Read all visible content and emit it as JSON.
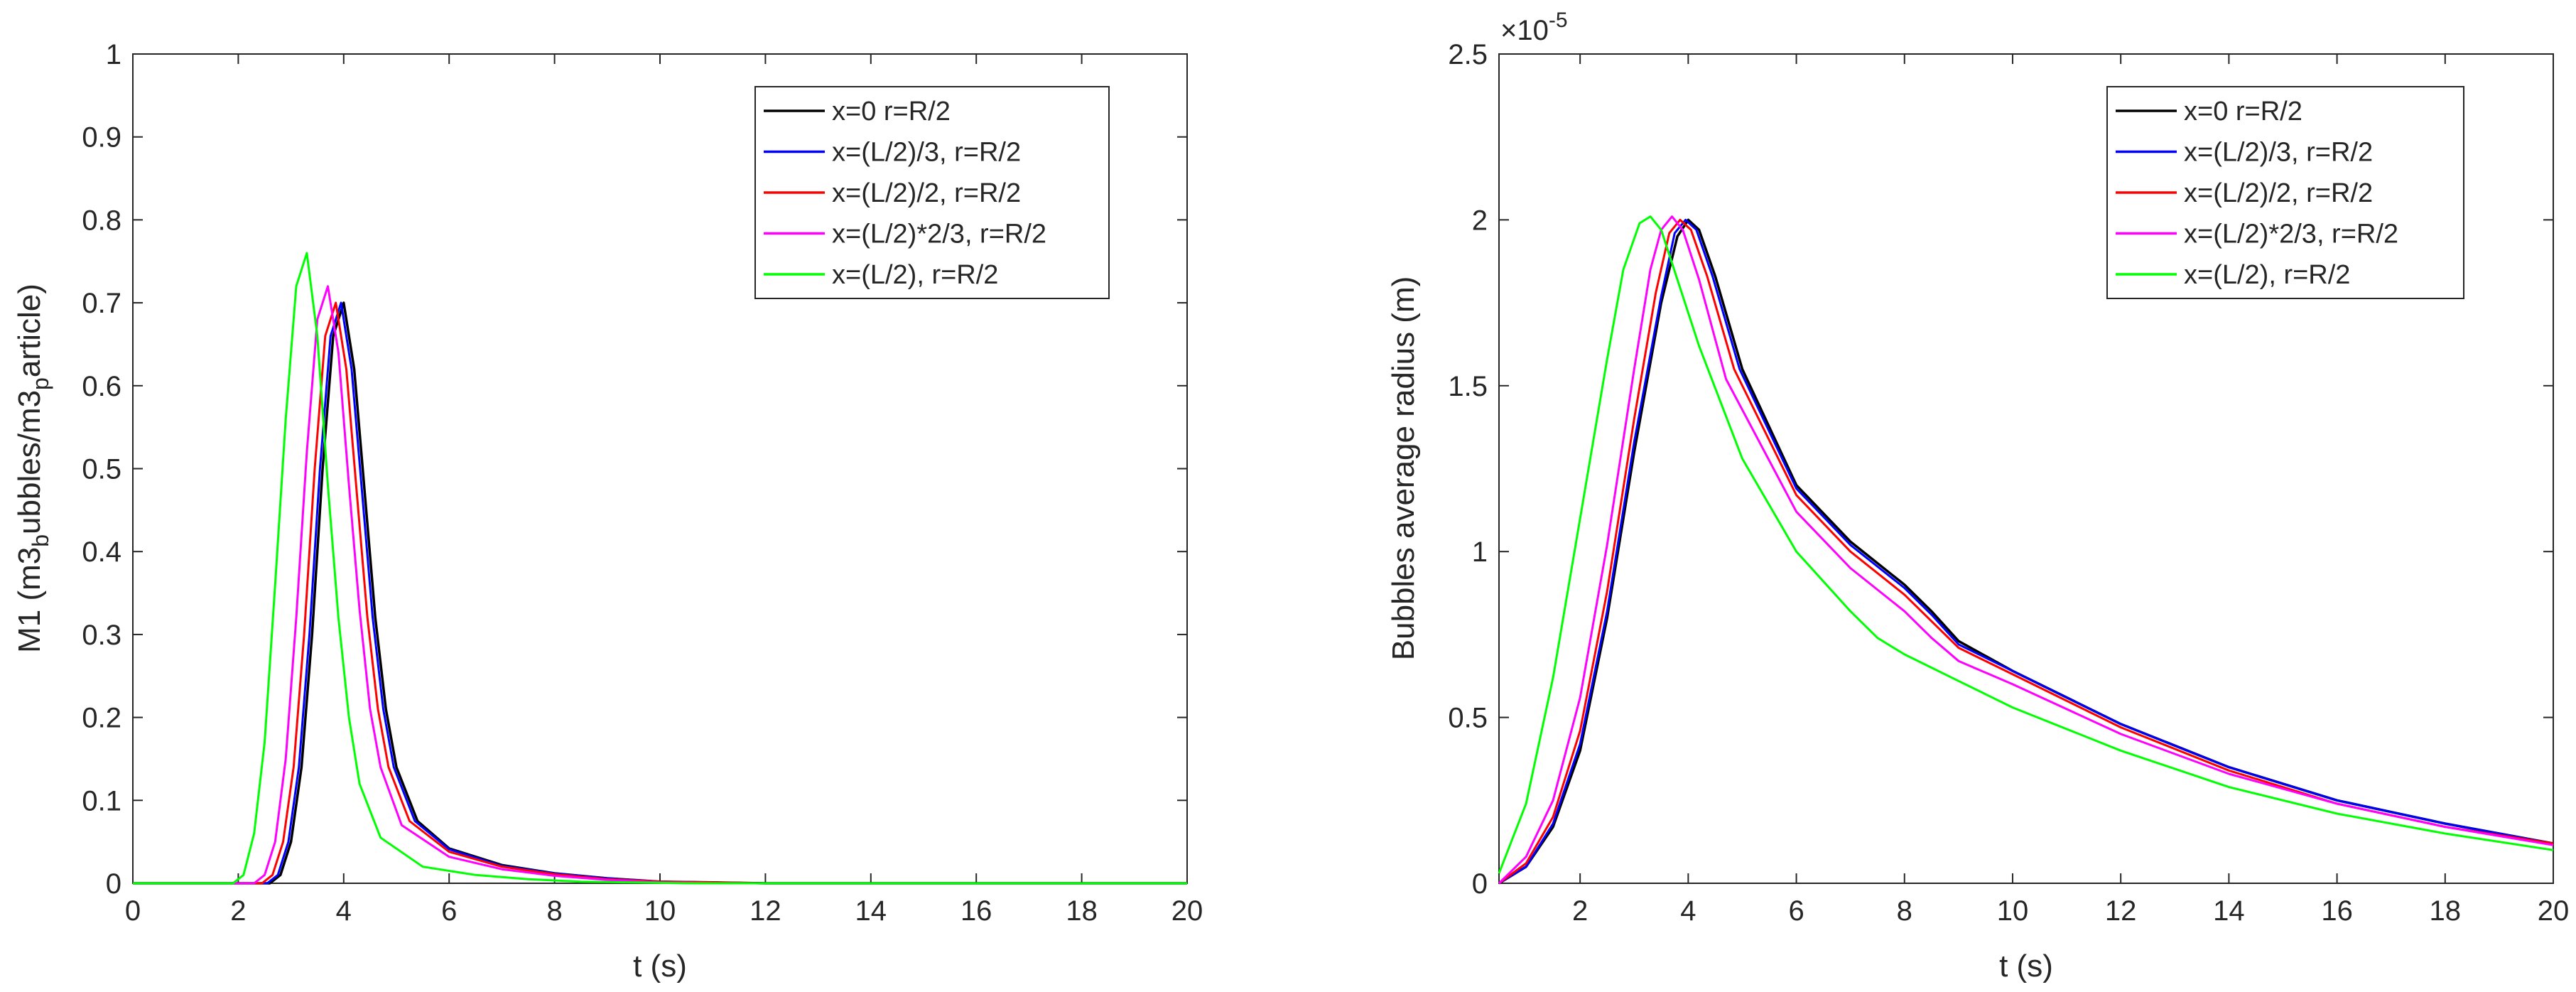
{
  "chart_data": [
    {
      "type": "line",
      "xlabel": "t (s)",
      "ylabel": {
        "base": "M1 (m3",
        "sub1": "b",
        "mid": "ubbles/m3",
        "sub2": "p",
        "end": "article)"
      },
      "xlim": [
        0,
        20
      ],
      "ylim": [
        0,
        1
      ],
      "xticks": [
        0,
        2,
        4,
        6,
        8,
        10,
        12,
        14,
        16,
        18,
        20
      ],
      "xtick_labels": [
        "0",
        "2",
        "4",
        "6",
        "8",
        "10",
        "12",
        "14",
        "16",
        "18",
        "20"
      ],
      "yticks": [
        0,
        0.1,
        0.2,
        0.3,
        0.4,
        0.5,
        0.6,
        0.7,
        0.8,
        0.9,
        1
      ],
      "ytick_labels": [
        "0",
        "0.1",
        "0.2",
        "0.3",
        "0.4",
        "0.5",
        "0.6",
        "0.7",
        "0.8",
        "0.9",
        "1"
      ],
      "legend_position": "top-right",
      "series": [
        {
          "name": "x=0 r=R/2",
          "color": "#000000",
          "x": [
            0,
            2.6,
            2.8,
            3.0,
            3.2,
            3.4,
            3.6,
            3.8,
            4.0,
            4.2,
            4.4,
            4.6,
            4.8,
            5.0,
            5.4,
            6.0,
            7.0,
            8.0,
            9.0,
            10.0,
            11.0,
            12.0,
            20.0
          ],
          "y": [
            0,
            0,
            0.01,
            0.05,
            0.14,
            0.3,
            0.5,
            0.66,
            0.7,
            0.62,
            0.47,
            0.32,
            0.21,
            0.14,
            0.075,
            0.042,
            0.022,
            0.012,
            0.006,
            0.002,
            0.001,
            0,
            0
          ]
        },
        {
          "name": "x=(L/2)/3, r=R/2",
          "color": "#0000ff",
          "x": [
            0,
            2.55,
            2.75,
            2.95,
            3.15,
            3.35,
            3.55,
            3.75,
            3.95,
            4.15,
            4.35,
            4.55,
            4.75,
            4.95,
            5.35,
            6.0,
            7.0,
            8.0,
            9.0,
            10.0,
            11.0,
            12.0,
            20.0
          ],
          "y": [
            0,
            0,
            0.01,
            0.05,
            0.14,
            0.3,
            0.5,
            0.66,
            0.7,
            0.62,
            0.47,
            0.32,
            0.21,
            0.14,
            0.075,
            0.041,
            0.021,
            0.012,
            0.006,
            0.002,
            0.001,
            0,
            0
          ]
        },
        {
          "name": "x=(L/2)/2, r=R/2",
          "color": "#ff0000",
          "x": [
            0,
            2.45,
            2.65,
            2.85,
            3.05,
            3.25,
            3.45,
            3.65,
            3.85,
            4.05,
            4.25,
            4.45,
            4.65,
            4.85,
            5.25,
            6.0,
            7.0,
            8.0,
            9.0,
            10.0,
            11.0,
            12.0,
            20.0
          ],
          "y": [
            0,
            0,
            0.01,
            0.05,
            0.14,
            0.3,
            0.5,
            0.66,
            0.7,
            0.62,
            0.47,
            0.32,
            0.21,
            0.14,
            0.075,
            0.038,
            0.02,
            0.011,
            0.005,
            0.002,
            0.001,
            0,
            0
          ]
        },
        {
          "name": "x=(L/2)*2/3, r=R/2",
          "color": "#ff00ff",
          "x": [
            0,
            2.3,
            2.5,
            2.7,
            2.9,
            3.1,
            3.3,
            3.5,
            3.7,
            3.9,
            4.1,
            4.3,
            4.5,
            4.7,
            5.1,
            6.0,
            7.0,
            8.0,
            9.0,
            10.0,
            11.0,
            12.0,
            20.0
          ],
          "y": [
            0,
            0,
            0.01,
            0.05,
            0.15,
            0.32,
            0.52,
            0.68,
            0.72,
            0.64,
            0.48,
            0.33,
            0.21,
            0.14,
            0.07,
            0.032,
            0.017,
            0.009,
            0.004,
            0.001,
            0,
            0,
            0
          ]
        },
        {
          "name": "x=(L/2), r=R/2",
          "color": "#00ff00",
          "x": [
            0,
            1.9,
            2.1,
            2.3,
            2.5,
            2.7,
            2.9,
            3.1,
            3.3,
            3.5,
            3.7,
            3.9,
            4.1,
            4.3,
            4.7,
            5.5,
            6.5,
            7.5,
            8.5,
            9.5,
            10.5,
            11.5,
            20.0
          ],
          "y": [
            0,
            0,
            0.01,
            0.06,
            0.17,
            0.36,
            0.56,
            0.72,
            0.76,
            0.66,
            0.48,
            0.32,
            0.2,
            0.12,
            0.055,
            0.02,
            0.01,
            0.005,
            0.002,
            0.001,
            0,
            0,
            0
          ]
        }
      ]
    },
    {
      "type": "line",
      "xlabel": "t (s)",
      "ylabel": "Bubbles average radius (m)",
      "y_scale_factor": {
        "base": "×10",
        "exponent": "-5"
      },
      "xlim": [
        0.5,
        20
      ],
      "ylim": [
        0,
        2.5
      ],
      "xticks": [
        2,
        4,
        6,
        8,
        10,
        12,
        14,
        16,
        18,
        20
      ],
      "xtick_labels": [
        "2",
        "4",
        "6",
        "8",
        "10",
        "12",
        "14",
        "16",
        "18",
        "20"
      ],
      "yticks": [
        0,
        0.5,
        1,
        1.5,
        2,
        2.5
      ],
      "ytick_labels": [
        "0",
        "0.5",
        "1",
        "1.5",
        "2",
        "2.5"
      ],
      "legend_position": "top-right",
      "series": [
        {
          "name": "x=0 r=R/2",
          "color": "#000000",
          "x": [
            0.5,
            1.0,
            1.5,
            2.0,
            2.5,
            3.0,
            3.5,
            3.8,
            4.0,
            4.2,
            4.5,
            5.0,
            6.0,
            7.0,
            8.0,
            8.5,
            9.0,
            10.0,
            12.0,
            14.0,
            16.0,
            18.0,
            20.0
          ],
          "y": [
            0,
            0.05,
            0.17,
            0.4,
            0.8,
            1.3,
            1.75,
            1.95,
            2.0,
            1.97,
            1.83,
            1.55,
            1.2,
            1.03,
            0.9,
            0.82,
            0.73,
            0.64,
            0.48,
            0.35,
            0.25,
            0.18,
            0.12
          ]
        },
        {
          "name": "x=(L/2)/3, r=R/2",
          "color": "#0000ff",
          "x": [
            0.5,
            1.0,
            1.5,
            2.0,
            2.5,
            3.0,
            3.5,
            3.75,
            3.95,
            4.15,
            4.45,
            4.95,
            6.0,
            7.0,
            8.0,
            8.5,
            9.0,
            10.0,
            12.0,
            14.0,
            16.0,
            18.0,
            20.0
          ],
          "y": [
            0,
            0.05,
            0.18,
            0.42,
            0.82,
            1.33,
            1.77,
            1.96,
            2.0,
            1.97,
            1.83,
            1.55,
            1.19,
            1.02,
            0.89,
            0.81,
            0.72,
            0.64,
            0.48,
            0.35,
            0.25,
            0.18,
            0.12
          ]
        },
        {
          "name": "x=(L/2)/2, r=R/2",
          "color": "#ff0000",
          "x": [
            0.5,
            1.0,
            1.5,
            2.0,
            2.5,
            3.0,
            3.4,
            3.65,
            3.85,
            4.05,
            4.35,
            4.85,
            6.0,
            7.0,
            8.0,
            8.5,
            9.0,
            10.0,
            12.0,
            14.0,
            16.0,
            18.0,
            20.0
          ],
          "y": [
            0,
            0.06,
            0.2,
            0.46,
            0.88,
            1.4,
            1.78,
            1.96,
            2.0,
            1.97,
            1.83,
            1.55,
            1.17,
            1.0,
            0.87,
            0.79,
            0.71,
            0.63,
            0.47,
            0.34,
            0.24,
            0.17,
            0.12
          ]
        },
        {
          "name": "x=(L/2)*2/3, r=R/2",
          "color": "#ff00ff",
          "x": [
            0.5,
            1.0,
            1.5,
            2.0,
            2.5,
            3.0,
            3.3,
            3.5,
            3.7,
            3.9,
            4.2,
            4.7,
            6.0,
            7.0,
            8.0,
            8.5,
            9.0,
            10.0,
            12.0,
            14.0,
            16.0,
            18.0,
            20.0
          ],
          "y": [
            0,
            0.08,
            0.25,
            0.56,
            1.02,
            1.55,
            1.85,
            1.97,
            2.01,
            1.97,
            1.82,
            1.52,
            1.12,
            0.95,
            0.82,
            0.74,
            0.67,
            0.6,
            0.45,
            0.33,
            0.24,
            0.17,
            0.115
          ]
        },
        {
          "name": "x=(L/2), r=R/2",
          "color": "#00ff00",
          "x": [
            0.5,
            1.0,
            1.5,
            2.0,
            2.5,
            2.8,
            3.1,
            3.3,
            3.5,
            3.8,
            4.2,
            5.0,
            6.0,
            7.0,
            7.5,
            8.0,
            9.0,
            10.0,
            12.0,
            14.0,
            16.0,
            18.0,
            20.0
          ],
          "y": [
            0.03,
            0.24,
            0.62,
            1.1,
            1.58,
            1.85,
            1.99,
            2.01,
            1.97,
            1.82,
            1.62,
            1.28,
            1.0,
            0.82,
            0.74,
            0.69,
            0.61,
            0.53,
            0.4,
            0.29,
            0.21,
            0.15,
            0.1
          ]
        }
      ]
    }
  ]
}
